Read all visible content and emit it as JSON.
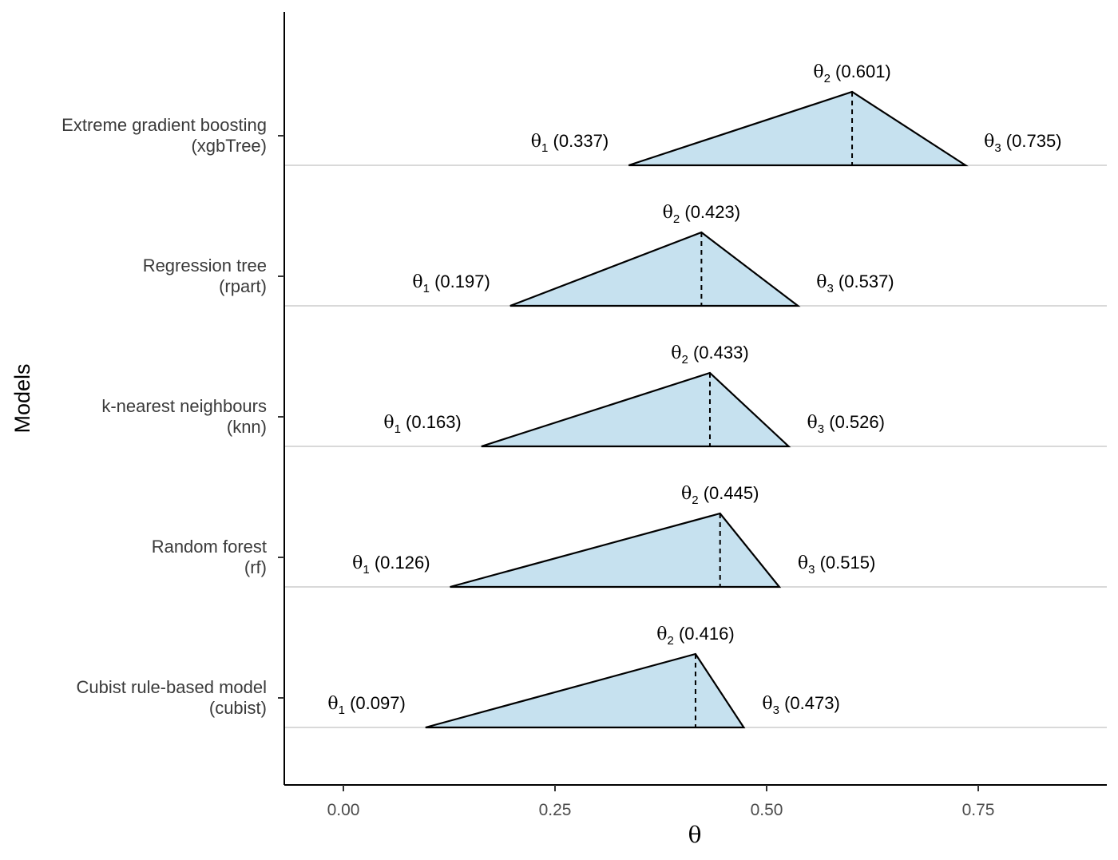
{
  "chart_data": {
    "type": "triangle",
    "xlabel": "θ",
    "ylabel": "Models",
    "xlim": [
      -0.07,
      0.9
    ],
    "xticks": [
      0.0,
      0.25,
      0.5,
      0.75
    ],
    "xtick_labels": [
      "0.00",
      "0.25",
      "0.50",
      "0.75"
    ],
    "fill_color": "#c6e1ef",
    "line_color": "#000000",
    "baseline_color": "#d9d9d9",
    "grid": false,
    "models": [
      {
        "name": "Extreme gradient boosting",
        "code": "(xgbTree)",
        "theta1": 0.337,
        "theta2": 0.601,
        "theta3": 0.735,
        "label1": "(0.337)",
        "label2": "(0.601)",
        "label3": "(0.735)"
      },
      {
        "name": "Regression tree",
        "code": "(rpart)",
        "theta1": 0.197,
        "theta2": 0.423,
        "theta3": 0.537,
        "label1": "(0.197)",
        "label2": "(0.423)",
        "label3": "(0.537)"
      },
      {
        "name": "k-nearest neighbours",
        "code": "(knn)",
        "theta1": 0.163,
        "theta2": 0.433,
        "theta3": 0.526,
        "label1": "(0.163)",
        "label2": "(0.433)",
        "label3": "(0.526)"
      },
      {
        "name": "Random forest",
        "code": "(rf)",
        "theta1": 0.126,
        "theta2": 0.445,
        "theta3": 0.515,
        "label1": "(0.126)",
        "label2": "(0.445)",
        "label3": "(0.515)"
      },
      {
        "name": "Cubist rule-based model",
        "code": "(cubist)",
        "theta1": 0.097,
        "theta2": 0.416,
        "theta3": 0.473,
        "label1": "(0.097)",
        "label2": "(0.416)",
        "label3": "(0.473)"
      }
    ]
  }
}
